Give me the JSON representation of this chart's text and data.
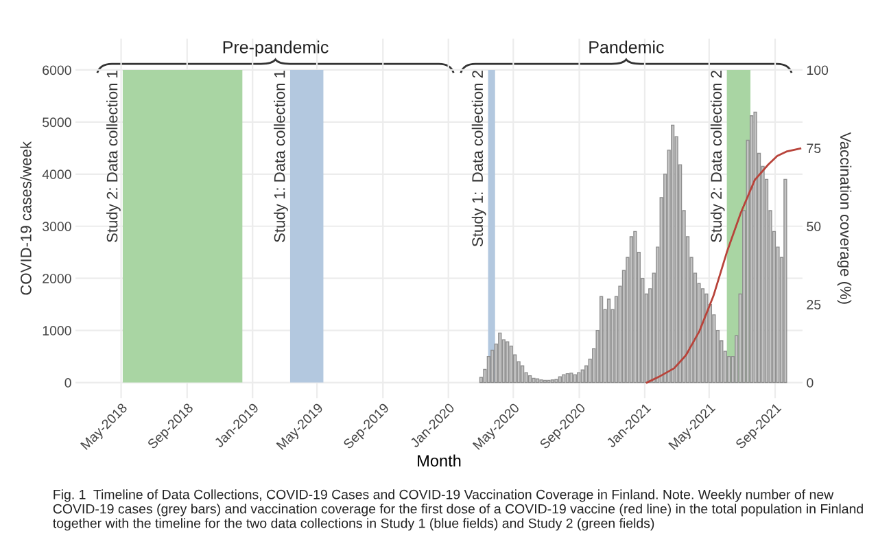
{
  "chart_data": {
    "type": "bar",
    "xlabel": "Month",
    "ylabel": "COVID-19 cases/week",
    "y2label": "Vaccination coverage (%)",
    "x": [
      "2020-03-02",
      "2020-03-09",
      "2020-03-16",
      "2020-03-23",
      "2020-03-30",
      "2020-04-06",
      "2020-04-13",
      "2020-04-20",
      "2020-04-27",
      "2020-05-04",
      "2020-05-11",
      "2020-05-18",
      "2020-05-25",
      "2020-06-01",
      "2020-06-08",
      "2020-06-15",
      "2020-06-22",
      "2020-06-29",
      "2020-07-06",
      "2020-07-13",
      "2020-07-20",
      "2020-07-27",
      "2020-08-03",
      "2020-08-10",
      "2020-08-17",
      "2020-08-24",
      "2020-08-31",
      "2020-09-07",
      "2020-09-14",
      "2020-09-21",
      "2020-09-28",
      "2020-10-05",
      "2020-10-12",
      "2020-10-19",
      "2020-10-26",
      "2020-11-02",
      "2020-11-09",
      "2020-11-16",
      "2020-11-23",
      "2020-11-30",
      "2020-12-07",
      "2020-12-14",
      "2020-12-21",
      "2020-12-28",
      "2021-01-04",
      "2021-01-11",
      "2021-01-18",
      "2021-01-25",
      "2021-02-01",
      "2021-02-08",
      "2021-02-15",
      "2021-02-22",
      "2021-03-01",
      "2021-03-08",
      "2021-03-15",
      "2021-03-22",
      "2021-03-29",
      "2021-04-05",
      "2021-04-12",
      "2021-04-19",
      "2021-04-26",
      "2021-05-03",
      "2021-05-10",
      "2021-05-17",
      "2021-05-24",
      "2021-05-31",
      "2021-06-07",
      "2021-06-14",
      "2021-06-21",
      "2021-06-28",
      "2021-07-05",
      "2021-07-12",
      "2021-07-19",
      "2021-07-26",
      "2021-08-02",
      "2021-08-09",
      "2021-08-16",
      "2021-08-23",
      "2021-08-30",
      "2021-09-06",
      "2021-09-13",
      "2021-09-20"
    ],
    "series": [
      {
        "color": "#c4c4c4",
        "values": [
          100,
          250,
          500,
          620,
          740,
          950,
          820,
          780,
          700,
          530,
          400,
          320,
          190,
          130,
          80,
          70,
          50,
          40,
          40,
          50,
          60,
          110,
          150,
          170,
          180,
          150,
          190,
          240,
          320,
          450,
          650,
          1000,
          1650,
          1400,
          1600,
          1400,
          1650,
          1850,
          2150,
          2400,
          2800,
          2900,
          2500,
          2000,
          1700,
          1800,
          2100,
          2600,
          3550,
          4000,
          4460,
          4940,
          4720,
          4180,
          3300,
          2800,
          2400,
          2100,
          1900,
          1800,
          1700,
          1500,
          1300,
          1000,
          800,
          600,
          500,
          500,
          900,
          1700,
          3300,
          4650,
          5120,
          5190,
          4400,
          4150,
          3900,
          3300,
          2900,
          2600,
          2400,
          3900
        ]
      },
      {
        "type": "line",
        "axis": "y2",
        "color": "#b8433a",
        "x": [
          "2021-01-05",
          "2021-01-27",
          "2021-02-25",
          "2021-03-19",
          "2021-04-13",
          "2021-05-09",
          "2021-06-03",
          "2021-06-29",
          "2021-07-25",
          "2021-08-19",
          "2021-09-05",
          "2021-09-22",
          "2021-10-18"
        ],
        "values": [
          0,
          1.8,
          4.6,
          8.8,
          16.5,
          27.7,
          41.7,
          54.3,
          64.8,
          69.7,
          72.5,
          73.9,
          74.9
        ]
      }
    ],
    "xlim": [
      "2018-02-05",
      "2021-10-22"
    ],
    "xticks": [
      {
        "value": "2018-05-01",
        "label": "May-2018"
      },
      {
        "value": "2018-09-01",
        "label": "Sep-2018"
      },
      {
        "value": "2019-01-01",
        "label": "Jan-2019"
      },
      {
        "value": "2019-05-01",
        "label": "May-2019"
      },
      {
        "value": "2019-09-01",
        "label": "Sep-2019"
      },
      {
        "value": "2020-01-01",
        "label": "Jan-2020"
      },
      {
        "value": "2020-05-01",
        "label": "May-2020"
      },
      {
        "value": "2020-09-01",
        "label": "Sep-2020"
      },
      {
        "value": "2021-01-01",
        "label": "Jan-2021"
      },
      {
        "value": "2021-05-01",
        "label": "May-2021"
      },
      {
        "value": "2021-09-01",
        "label": "Sep-2021"
      }
    ],
    "ylim": [
      -300,
      6600
    ],
    "yticks": [
      0,
      1000,
      2000,
      3000,
      4000,
      5000,
      6000
    ],
    "y2lim": [
      -5,
      110
    ],
    "y2ticks": [
      0,
      25,
      50,
      75,
      100
    ],
    "bands": [
      {
        "axis": "x",
        "from": "2018-05-04",
        "to": "2018-12-13",
        "label": "Study 2: Data collection 1",
        "color": "#a9d5a3"
      },
      {
        "axis": "x",
        "from": "2019-03-12",
        "to": "2019-05-13",
        "label": "Study 1: Data collection 1",
        "color": "#b3c8df"
      },
      {
        "axis": "x",
        "from": "2020-03-15",
        "to": "2020-03-28",
        "label": "Study 1:  Data collection 2",
        "color": "#b3c8df"
      },
      {
        "axis": "x",
        "from": "2021-06-03",
        "to": "2021-07-17",
        "label": "Study 2: Data collection 2",
        "color": "#a9d5a3"
      }
    ],
    "annotations": [
      "Pre-pandemic",
      "Pandemic",
      "Fig. 1  Timeline of Data Collections, COVID-19 Cases and COVID-19 Vaccination Coverage in Finland. Note. Weekly number of new COVID-19 cases (grey bars) and vaccination coverage for the first dose of a COVID-19 vaccine (red line) in the total population in Finland together with the timeline for the two data collections in Study 1 (blue fields) and Study 2 (green fields)"
    ],
    "grid": true,
    "legend": false
  }
}
